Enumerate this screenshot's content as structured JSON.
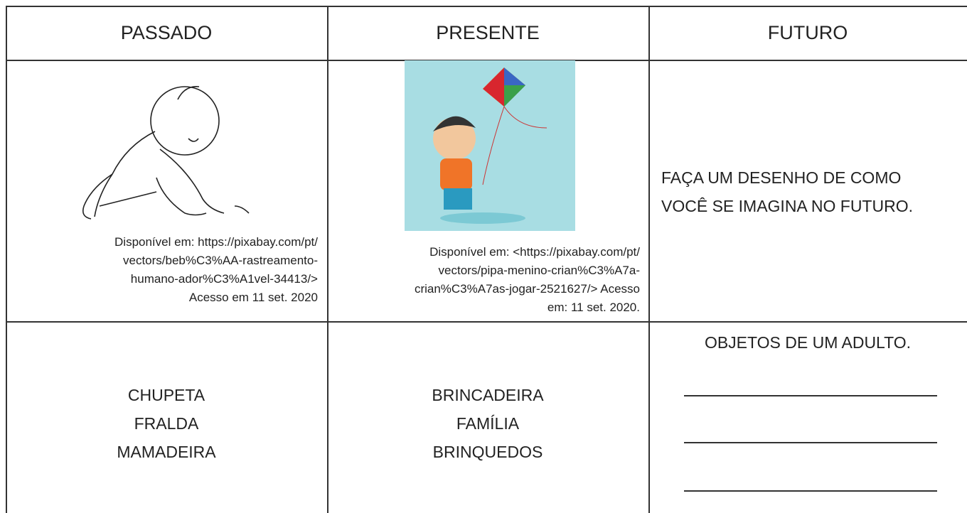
{
  "table": {
    "header": [
      "PASSADO",
      "PRESENTE",
      "FUTURO"
    ],
    "rows": [
      [
        {
          "caption": [
            "Disponível em: https://pixabay.com/pt/",
            "vectors/beb%C3%AA-rastreamento-",
            "humano-ador%C3%A1vel-34413/>",
            "Acesso em 11 set. 2020"
          ]
        },
        {
          "caption": [
            "Disponível em: <https://pixabay.com/pt/",
            "vectors/pipa-menino-crian%C3%A7a-",
            "crian%C3%A7as-jogar-2521627/> Acesso",
            "em: 11 set. 2020."
          ]
        },
        {
          "text": [
            "FAÇA UM DESENHO DE COMO",
            "VOCÊ SE IMAGINA NO FUTURO."
          ]
        }
      ],
      [
        {
          "text": [
            "CHUPETA",
            "FRALDA",
            "MAMADEIRA"
          ]
        },
        {
          "text": [
            "BRINCADEIRA",
            "FAMÍLIA",
            "BRINQUEDOS"
          ]
        },
        {
          "title": "OBJETOS DE UM ADULTO."
        }
      ]
    ]
  }
}
